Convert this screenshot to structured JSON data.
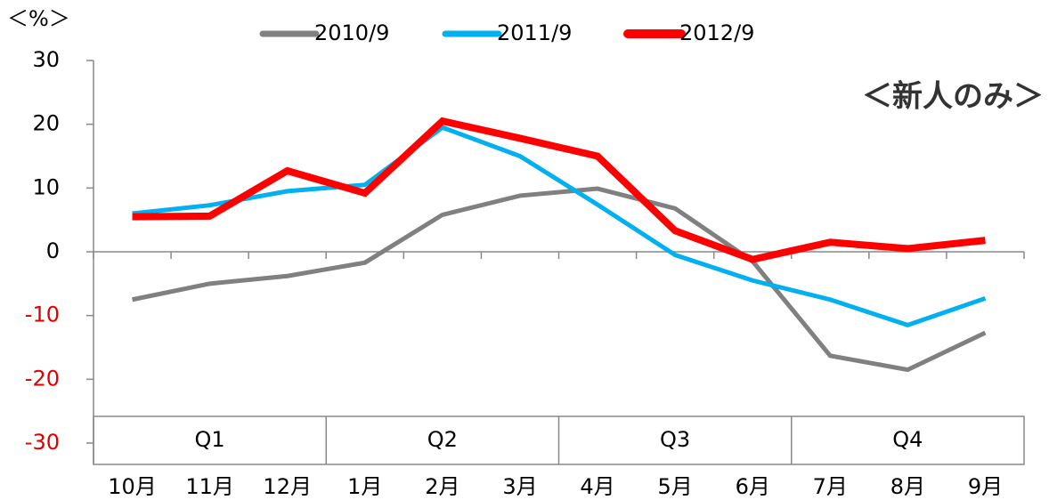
{
  "chart_data": {
    "type": "line",
    "unit_label": "＜%＞",
    "annotation": "＜新人のみ＞",
    "categories": [
      "10月",
      "11月",
      "12月",
      "1月",
      "2月",
      "3月",
      "4月",
      "5月",
      "6月",
      "7月",
      "8月",
      "9月"
    ],
    "quarters": [
      {
        "label": "Q1",
        "span": 3
      },
      {
        "label": "Q2",
        "span": 3
      },
      {
        "label": "Q3",
        "span": 3
      },
      {
        "label": "Q4",
        "span": 3
      }
    ],
    "series": [
      {
        "name": "2010/9",
        "color": "#808080",
        "values": [
          -7.5,
          -5,
          -3.8,
          -1.7,
          5.8,
          8.8,
          9.9,
          6.8,
          -1.5,
          -16.3,
          -18.5,
          -12.7
        ]
      },
      {
        "name": "2011/9",
        "color": "#00b0f0",
        "values": [
          6,
          7.3,
          9.5,
          10.5,
          19.5,
          15,
          7.4,
          -0.5,
          -4.5,
          -7.5,
          -11.5,
          -7.3
        ]
      },
      {
        "name": "2012/9",
        "color": "#ff0000",
        "values": [
          5.5,
          5.6,
          12.7,
          9.2,
          20.5,
          17.8,
          15,
          3.3,
          -1.2,
          1.5,
          0.5,
          1.8
        ]
      }
    ],
    "ylim": [
      -30,
      30
    ],
    "yticks": [
      -30,
      -20,
      -10,
      0,
      10,
      20,
      30
    ],
    "negative_tick_color": "#e00000"
  }
}
